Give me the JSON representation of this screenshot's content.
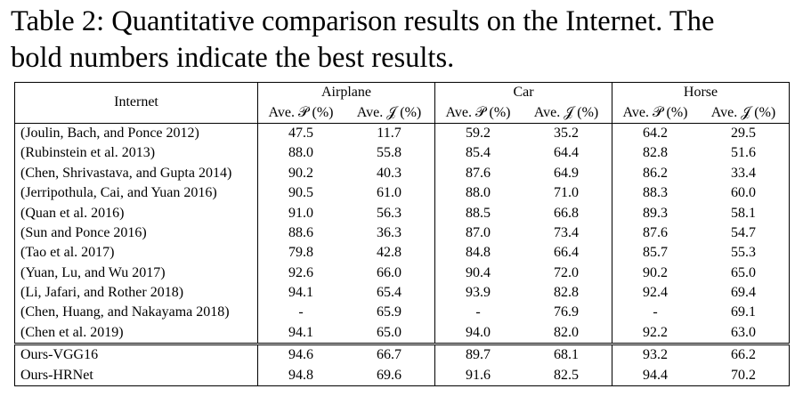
{
  "caption": {
    "line1": "Table 2: Quantitative comparison results on the Internet. The",
    "line2": "bold numbers indicate the best results."
  },
  "table": {
    "corner_label": "Internet",
    "groups": [
      "Airplane",
      "Car",
      "Horse"
    ],
    "subheaders": [
      "Ave. 𝒫 (%)",
      "Ave. 𝒥 (%)",
      "Ave. 𝒫 (%)",
      "Ave. 𝒥 (%)",
      "Ave. 𝒫 (%)",
      "Ave. 𝒥 (%)"
    ],
    "rows": [
      {
        "method": "(Joulin, Bach, and Ponce 2012)",
        "values": [
          "47.5",
          "11.7",
          "59.2",
          "35.2",
          "64.2",
          "29.5"
        ],
        "bold": []
      },
      {
        "method": "(Rubinstein et al. 2013)",
        "values": [
          "88.0",
          "55.8",
          "85.4",
          "64.4",
          "82.8",
          "51.6"
        ],
        "bold": []
      },
      {
        "method": "(Chen, Shrivastava, and Gupta 2014)",
        "values": [
          "90.2",
          "40.3",
          "87.6",
          "64.9",
          "86.2",
          "33.4"
        ],
        "bold": []
      },
      {
        "method": "(Jerripothula, Cai, and Yuan 2016)",
        "values": [
          "90.5",
          "61.0",
          "88.0",
          "71.0",
          "88.3",
          "60.0"
        ],
        "bold": []
      },
      {
        "method": "(Quan et al. 2016)",
        "values": [
          "91.0",
          "56.3",
          "88.5",
          "66.8",
          "89.3",
          "58.1"
        ],
        "bold": []
      },
      {
        "method": "(Sun and Ponce 2016)",
        "values": [
          "88.6",
          "36.3",
          "87.0",
          "73.4",
          "87.6",
          "54.7"
        ],
        "bold": []
      },
      {
        "method": "(Tao et al. 2017)",
        "values": [
          "79.8",
          "42.8",
          "84.8",
          "66.4",
          "85.7",
          "55.3"
        ],
        "bold": []
      },
      {
        "method": "(Yuan, Lu, and Wu 2017)",
        "values": [
          "92.6",
          "66.0",
          "90.4",
          "72.0",
          "90.2",
          "65.0"
        ],
        "bold": []
      },
      {
        "method": "(Li, Jafari, and Rother 2018)",
        "values": [
          "94.1",
          "65.4",
          "93.9",
          "82.8",
          "92.4",
          "69.4"
        ],
        "bold": [
          3
        ]
      },
      {
        "method": "(Chen, Huang, and Nakayama 2018)",
        "values": [
          "-",
          "65.9",
          "-",
          "76.9",
          "-",
          "69.1"
        ],
        "bold": []
      },
      {
        "method": "(Chen et al. 2019)",
        "values": [
          "94.1",
          "65.0",
          "94.0",
          "82.0",
          "92.2",
          "63.0"
        ],
        "bold": [
          2
        ]
      }
    ],
    "ours": [
      {
        "method": "Ours-VGG16",
        "values": [
          "94.6",
          "66.7",
          "89.7",
          "68.1",
          "93.2",
          "66.2"
        ],
        "bold": []
      },
      {
        "method": "Ours-HRNet",
        "values": [
          "94.8",
          "69.6",
          "91.6",
          "82.5",
          "94.4",
          "70.2"
        ],
        "bold": [
          0,
          1,
          4,
          5
        ]
      }
    ]
  }
}
